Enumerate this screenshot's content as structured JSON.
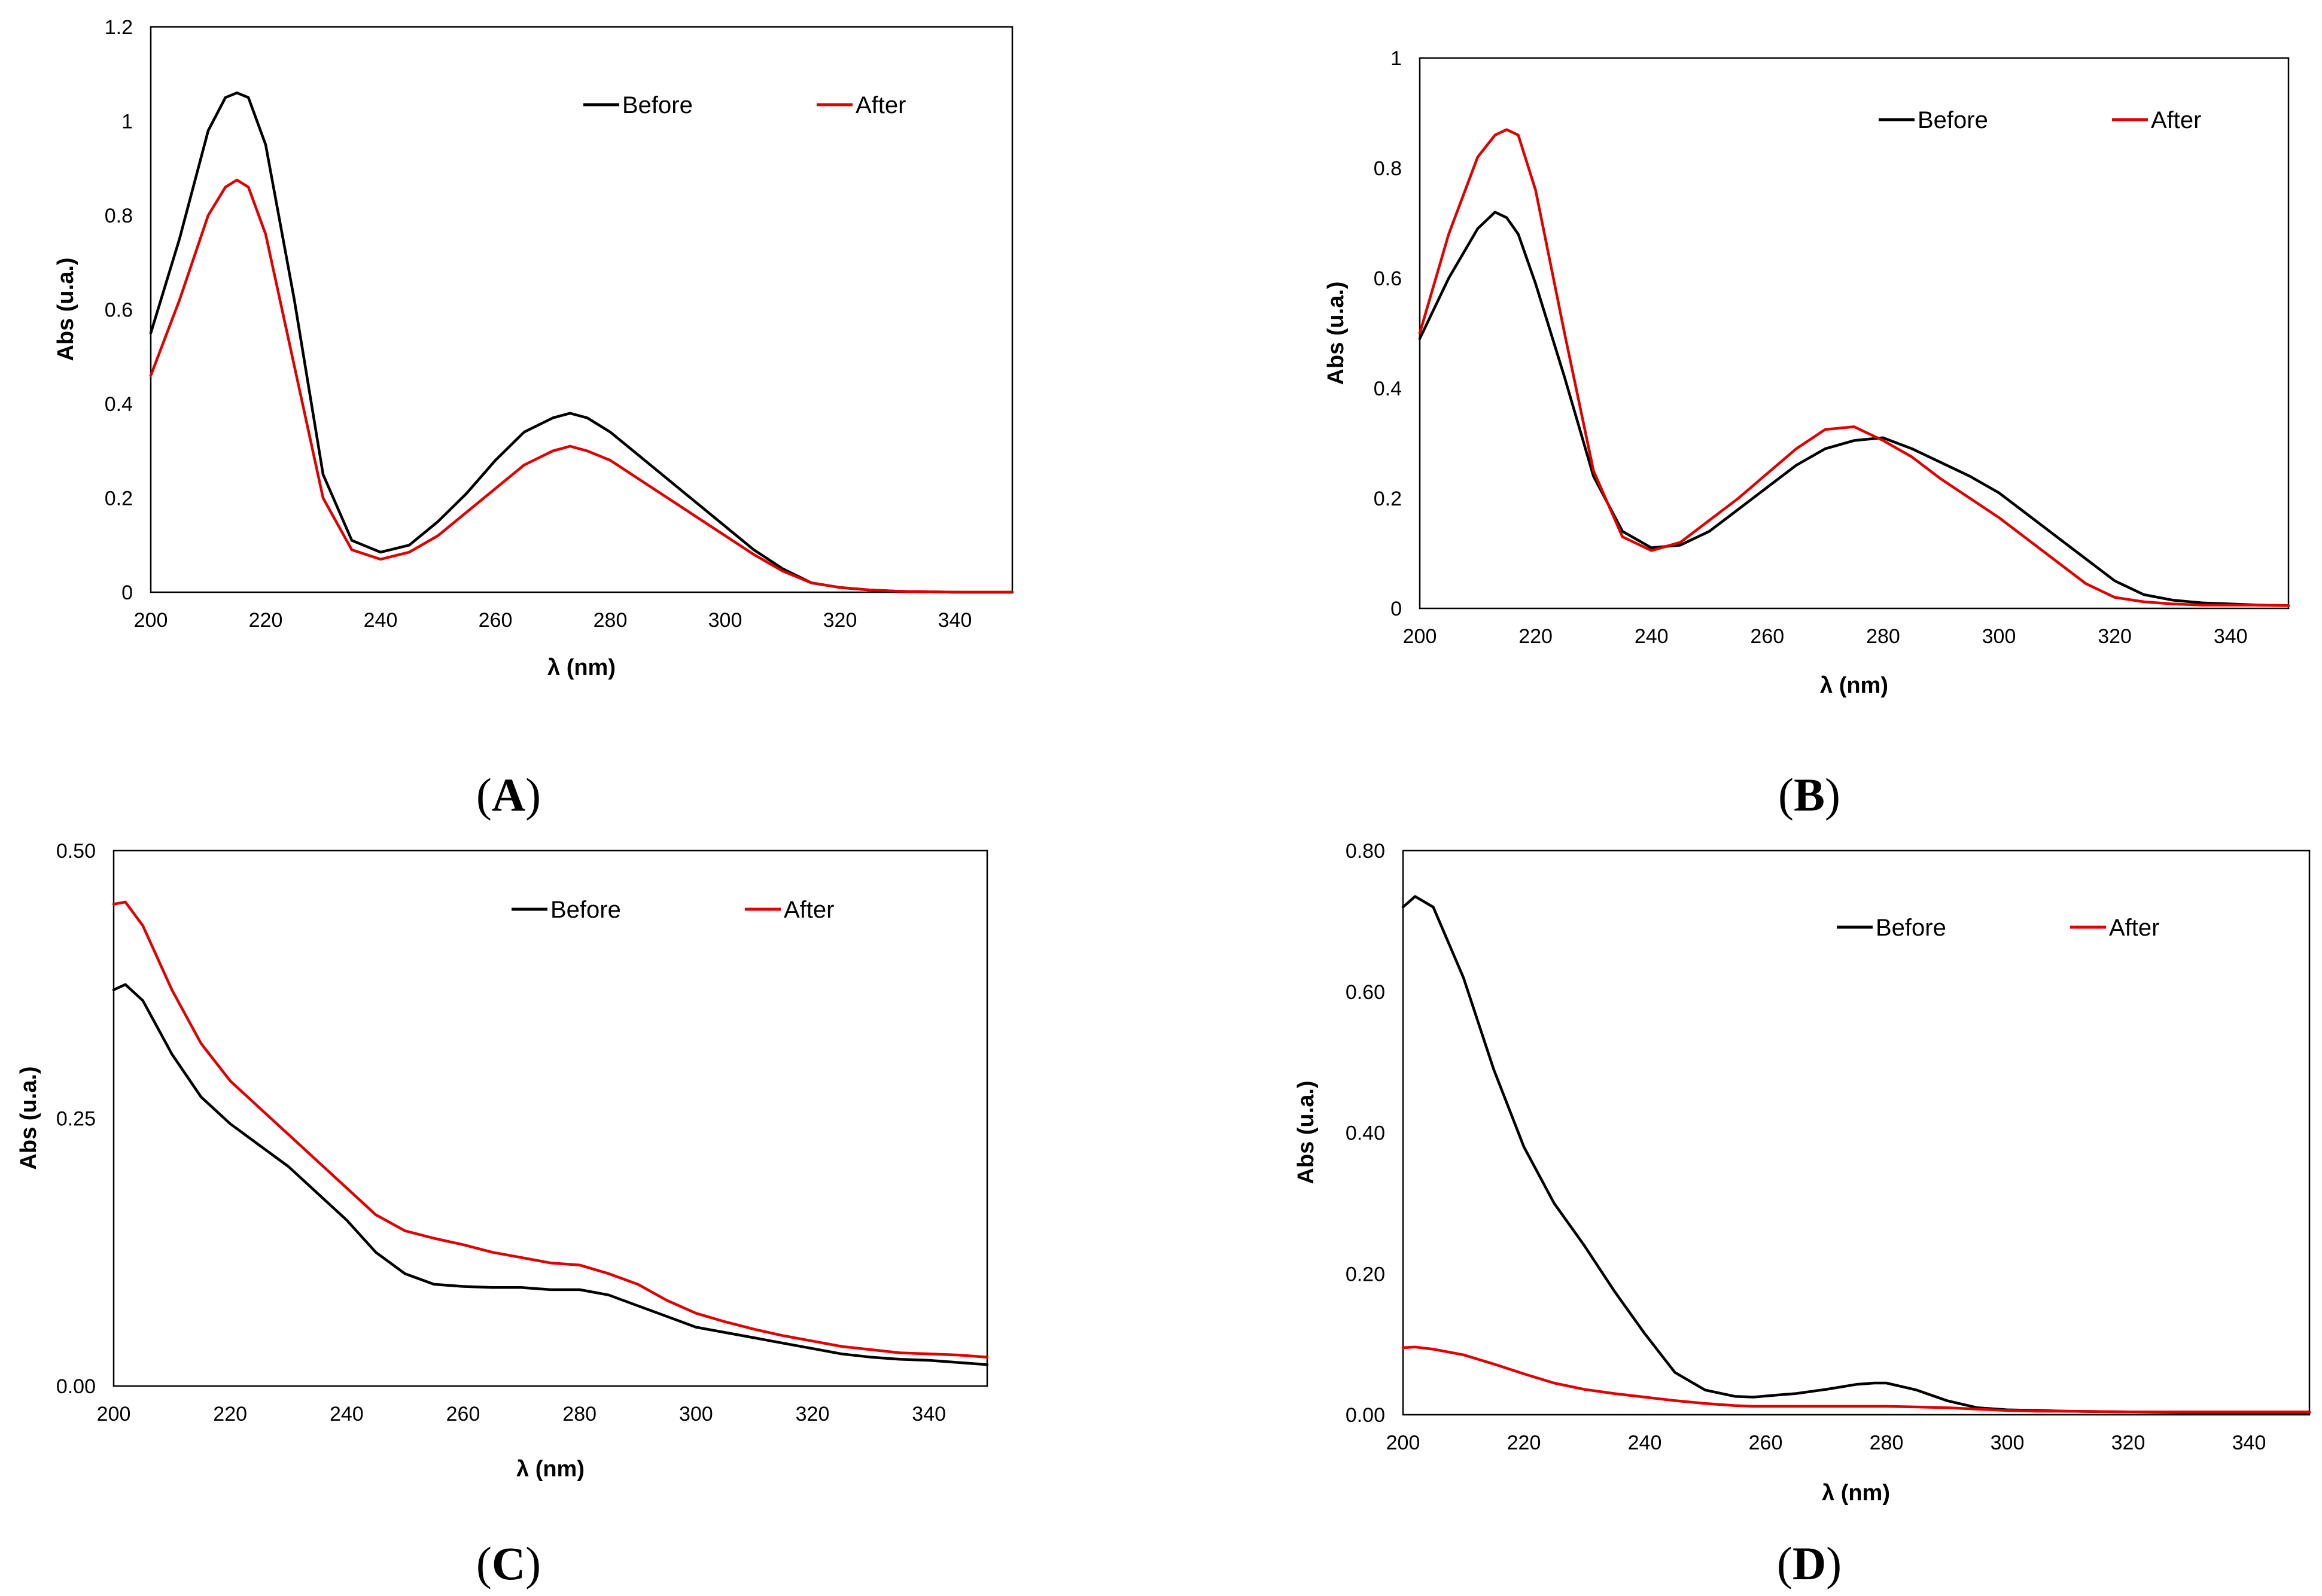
{
  "colors": {
    "before": "#000000",
    "after": "#e00000"
  },
  "chart_data": [
    {
      "id": "A",
      "panel_label": "A",
      "type": "line",
      "xlabel": "λ (nm)",
      "ylabel": "Abs (u.a.)",
      "xlim": [
        200,
        350
      ],
      "ylim": [
        0,
        1.2
      ],
      "xticks": [
        200,
        220,
        240,
        260,
        280,
        300,
        320,
        340
      ],
      "yticks": [
        0,
        0.2,
        0.4,
        0.6,
        0.8,
        1,
        1.2
      ],
      "ytick_labels": [
        "0",
        "0.2",
        "0.4",
        "0.6",
        "0.8",
        "1",
        "1.2"
      ],
      "grid": false,
      "legend": "top-right",
      "x": [
        200,
        205,
        210,
        213,
        215,
        217,
        220,
        225,
        230,
        235,
        240,
        245,
        250,
        255,
        260,
        265,
        270,
        273,
        276,
        280,
        285,
        290,
        295,
        300,
        305,
        310,
        315,
        320,
        325,
        330,
        340,
        350
      ],
      "series": [
        {
          "name": "Before",
          "color": "#000000",
          "values": [
            0.55,
            0.75,
            0.98,
            1.05,
            1.06,
            1.05,
            0.95,
            0.62,
            0.25,
            0.11,
            0.085,
            0.1,
            0.15,
            0.21,
            0.28,
            0.34,
            0.37,
            0.38,
            0.37,
            0.34,
            0.29,
            0.24,
            0.19,
            0.14,
            0.09,
            0.05,
            0.02,
            0.01,
            0.005,
            0.002,
            0.0,
            0.0
          ]
        },
        {
          "name": "After",
          "color": "#e00000",
          "values": [
            0.46,
            0.62,
            0.8,
            0.86,
            0.875,
            0.86,
            0.76,
            0.48,
            0.2,
            0.09,
            0.07,
            0.085,
            0.12,
            0.17,
            0.22,
            0.27,
            0.3,
            0.31,
            0.3,
            0.28,
            0.24,
            0.2,
            0.16,
            0.12,
            0.08,
            0.045,
            0.02,
            0.01,
            0.005,
            0.002,
            0.0,
            0.0
          ]
        }
      ]
    },
    {
      "id": "B",
      "panel_label": "B",
      "type": "line",
      "xlabel": "λ (nm)",
      "ylabel": "Abs (u.a.)",
      "xlim": [
        200,
        350
      ],
      "ylim": [
        0,
        1
      ],
      "xticks": [
        200,
        220,
        240,
        260,
        280,
        300,
        320,
        340
      ],
      "yticks": [
        0,
        0.2,
        0.4,
        0.6,
        0.8,
        1
      ],
      "ytick_labels": [
        "0",
        "0.2",
        "0.4",
        "0.6",
        "0.8",
        "1"
      ],
      "grid": false,
      "legend": "top-right",
      "x": [
        200,
        205,
        210,
        213,
        215,
        217,
        220,
        225,
        230,
        235,
        240,
        245,
        250,
        255,
        260,
        265,
        270,
        275,
        280,
        285,
        290,
        295,
        300,
        305,
        310,
        315,
        320,
        325,
        330,
        335,
        340,
        345,
        350
      ],
      "series": [
        {
          "name": "Before",
          "color": "#000000",
          "values": [
            0.49,
            0.6,
            0.69,
            0.72,
            0.71,
            0.68,
            0.59,
            0.42,
            0.24,
            0.14,
            0.11,
            0.115,
            0.14,
            0.18,
            0.22,
            0.26,
            0.29,
            0.305,
            0.31,
            0.29,
            0.265,
            0.24,
            0.21,
            0.17,
            0.13,
            0.09,
            0.05,
            0.025,
            0.015,
            0.01,
            0.008,
            0.006,
            0.005
          ]
        },
        {
          "name": "After",
          "color": "#e00000",
          "values": [
            0.5,
            0.68,
            0.82,
            0.86,
            0.87,
            0.86,
            0.76,
            0.5,
            0.25,
            0.13,
            0.105,
            0.12,
            0.16,
            0.2,
            0.245,
            0.29,
            0.325,
            0.33,
            0.305,
            0.275,
            0.235,
            0.2,
            0.165,
            0.125,
            0.085,
            0.045,
            0.02,
            0.012,
            0.008,
            0.006,
            0.006,
            0.006,
            0.005
          ]
        }
      ]
    },
    {
      "id": "C",
      "panel_label": "C",
      "type": "line",
      "xlabel": "λ (nm)",
      "ylabel": "Abs (u.a.)",
      "xlim": [
        200,
        350
      ],
      "ylim": [
        0,
        0.5
      ],
      "xticks": [
        200,
        220,
        240,
        260,
        280,
        300,
        320,
        340
      ],
      "yticks": [
        0,
        0.25,
        0.5
      ],
      "ytick_labels": [
        "0.00",
        "0.25",
        "0.50"
      ],
      "grid": false,
      "legend": "top-right",
      "x": [
        200,
        202,
        205,
        210,
        215,
        220,
        225,
        230,
        235,
        240,
        245,
        250,
        255,
        260,
        265,
        270,
        275,
        280,
        285,
        290,
        295,
        300,
        305,
        310,
        315,
        320,
        325,
        330,
        335,
        340,
        345,
        350
      ],
      "series": [
        {
          "name": "Before",
          "color": "#000000",
          "values": [
            0.37,
            0.375,
            0.36,
            0.31,
            0.27,
            0.245,
            0.225,
            0.205,
            0.18,
            0.155,
            0.125,
            0.105,
            0.095,
            0.093,
            0.092,
            0.092,
            0.09,
            0.09,
            0.085,
            0.075,
            0.065,
            0.055,
            0.05,
            0.045,
            0.04,
            0.035,
            0.03,
            0.027,
            0.025,
            0.024,
            0.022,
            0.02
          ]
        },
        {
          "name": "After",
          "color": "#e00000",
          "values": [
            0.45,
            0.452,
            0.43,
            0.37,
            0.32,
            0.285,
            0.26,
            0.235,
            0.21,
            0.185,
            0.16,
            0.145,
            0.138,
            0.132,
            0.125,
            0.12,
            0.115,
            0.113,
            0.105,
            0.095,
            0.08,
            0.068,
            0.06,
            0.053,
            0.047,
            0.042,
            0.037,
            0.034,
            0.031,
            0.03,
            0.029,
            0.027
          ]
        }
      ]
    },
    {
      "id": "D",
      "panel_label": "D",
      "type": "line",
      "xlabel": "λ (nm)",
      "ylabel": "Abs (u.a.)",
      "xlim": [
        200,
        350
      ],
      "ylim": [
        0,
        0.8
      ],
      "xticks": [
        200,
        220,
        240,
        260,
        280,
        300,
        320,
        340
      ],
      "yticks": [
        0,
        0.2,
        0.4,
        0.6,
        0.8
      ],
      "ytick_labels": [
        "0.00",
        "0.20",
        "0.40",
        "0.60",
        "0.80"
      ],
      "grid": false,
      "legend": "top-right",
      "x": [
        200,
        202,
        205,
        210,
        215,
        220,
        225,
        230,
        235,
        240,
        245,
        250,
        255,
        258,
        262,
        265,
        270,
        275,
        278,
        280,
        285,
        290,
        295,
        300,
        305,
        310,
        320,
        330,
        340,
        350
      ],
      "series": [
        {
          "name": "Before",
          "color": "#000000",
          "values": [
            0.72,
            0.735,
            0.72,
            0.62,
            0.49,
            0.38,
            0.3,
            0.24,
            0.175,
            0.115,
            0.06,
            0.035,
            0.026,
            0.025,
            0.028,
            0.03,
            0.036,
            0.043,
            0.045,
            0.045,
            0.035,
            0.02,
            0.01,
            0.007,
            0.006,
            0.005,
            0.004,
            0.003,
            0.003,
            0.003
          ]
        },
        {
          "name": "After",
          "color": "#e00000",
          "values": [
            0.095,
            0.096,
            0.093,
            0.085,
            0.072,
            0.058,
            0.045,
            0.036,
            0.03,
            0.025,
            0.02,
            0.016,
            0.013,
            0.012,
            0.012,
            0.012,
            0.012,
            0.012,
            0.012,
            0.012,
            0.011,
            0.01,
            0.008,
            0.006,
            0.005,
            0.005,
            0.004,
            0.004,
            0.004,
            0.004
          ]
        }
      ]
    }
  ]
}
